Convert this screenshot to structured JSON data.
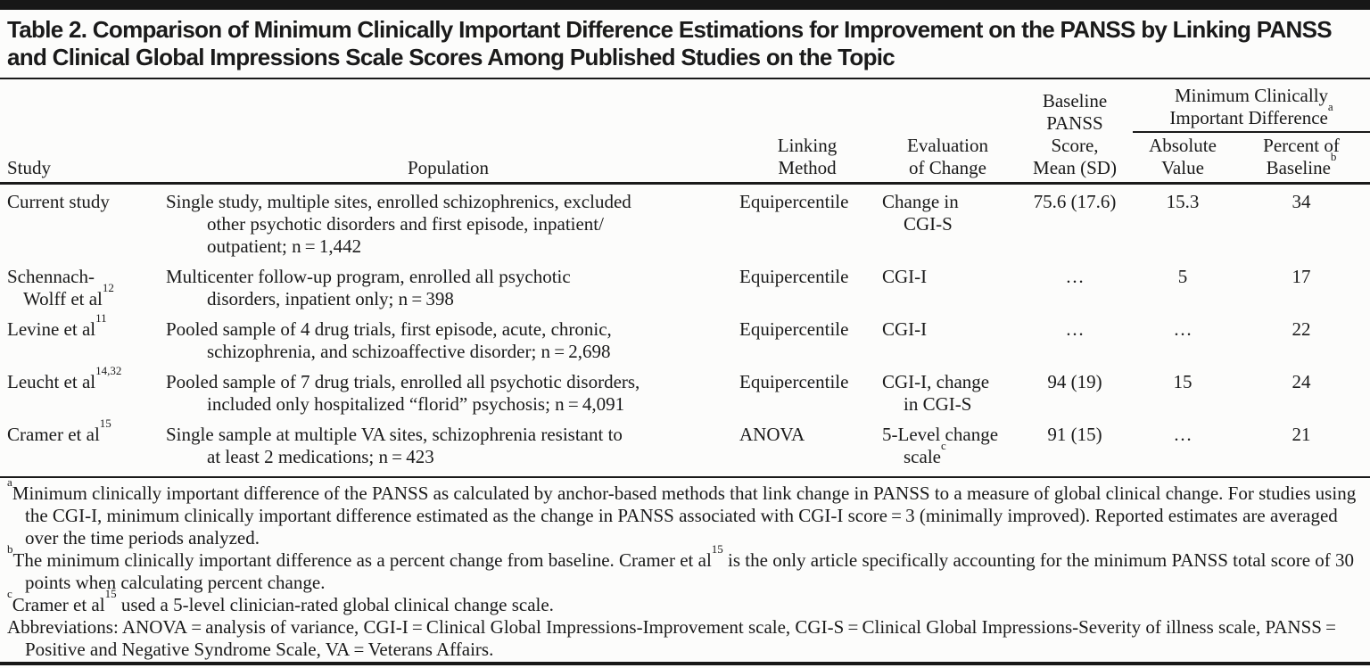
{
  "title": "Table 2. Comparison of Minimum Clinically Important Difference Estimations for Improvement on the PANSS by Linking PANSS\nand Clinical Global Impressions Scale Scores Among Published Studies on the Topic",
  "table": {
    "headers": {
      "study": "Study",
      "population": "Population",
      "linking_method": "Linking\nMethod",
      "evaluation_of_change": "Evaluation\nof Change",
      "baseline_panss": "Baseline\nPANSS\nScore,\nMean (SD)",
      "mcid_group": [
        {
          "t": "Minimum Clinically\nImportant Difference"
        },
        {
          "sup": "a"
        }
      ],
      "absolute_value": "Absolute\nValue",
      "percent_of_baseline": [
        {
          "t": "Percent of\nBaseline"
        },
        {
          "sup": "b"
        }
      ]
    },
    "rows": [
      {
        "study": [
          {
            "t": "Current study"
          }
        ],
        "population": "Single study, multiple sites, enrolled schizophrenics, excluded\nother psychotic disorders and first episode, inpatient/\noutpatient; n = 1,442",
        "linking_method": "Equipercentile",
        "evaluation_of_change": [
          {
            "t": "Change in\nCGI-S"
          }
        ],
        "baseline_panss": "75.6 (17.6)",
        "absolute_value": "15.3",
        "percent_of_baseline": "34"
      },
      {
        "study": [
          {
            "t": "Schennach-\nWolff et al"
          },
          {
            "sup": "12"
          }
        ],
        "population": "Multicenter follow-up program, enrolled all psychotic\ndisorders, inpatient only; n = 398",
        "linking_method": "Equipercentile",
        "evaluation_of_change": [
          {
            "t": "CGI-I"
          }
        ],
        "baseline_panss": "…",
        "absolute_value": "5",
        "percent_of_baseline": "17"
      },
      {
        "study": [
          {
            "t": "Levine et al"
          },
          {
            "sup": "11"
          }
        ],
        "population": "Pooled sample of 4 drug trials, first episode, acute, chronic,\nschizophrenia, and schizoaffective disorder; n = 2,698",
        "linking_method": "Equipercentile",
        "evaluation_of_change": [
          {
            "t": "CGI-I"
          }
        ],
        "baseline_panss": "…",
        "absolute_value": "…",
        "percent_of_baseline": "22"
      },
      {
        "study": [
          {
            "t": "Leucht et al"
          },
          {
            "sup": "14,32"
          }
        ],
        "population": "Pooled sample of 7 drug trials, enrolled all psychotic disorders,\nincluded only hospitalized “florid” psychosis; n = 4,091",
        "linking_method": "Equipercentile",
        "evaluation_of_change": [
          {
            "t": "CGI-I, change\nin CGI-S"
          }
        ],
        "baseline_panss": "94 (19)",
        "absolute_value": "15",
        "percent_of_baseline": "24"
      },
      {
        "study": [
          {
            "t": "Cramer et al"
          },
          {
            "sup": "15"
          }
        ],
        "population": "Single sample at multiple VA sites, schizophrenia resistant to\nat least 2 medications; n = 423",
        "linking_method": "ANOVA",
        "evaluation_of_change": [
          {
            "t": "5-Level change\nscale"
          },
          {
            "sup": "c"
          }
        ],
        "baseline_panss": "91 (15)",
        "absolute_value": "…",
        "percent_of_baseline": "21"
      }
    ]
  },
  "footnotes": [
    [
      {
        "sup": "a"
      },
      {
        "t": "Minimum clinically important difference of the PANSS as calculated by anchor-based methods that link change in PANSS to a measure of global clinical change. For studies using the CGI-I, minimum clinically important difference estimated as the change in PANSS associated with CGI-I score = 3 (minimally improved). Reported estimates are averaged over the time periods analyzed."
      }
    ],
    [
      {
        "sup": "b"
      },
      {
        "t": "The minimum clinically important difference as a percent change from baseline. Cramer et al"
      },
      {
        "sup": "15"
      },
      {
        "t": " is the only article specifically accounting for the minimum PANSS total score of 30 points when calculating percent change."
      }
    ],
    [
      {
        "sup": "c"
      },
      {
        "t": "Cramer et al"
      },
      {
        "sup": "15"
      },
      {
        "t": " used a 5-level clinician-rated global clinical change scale."
      }
    ],
    [
      {
        "t": "Abbreviations: ANOVA = analysis of variance, CGI-I = Clinical Global Impressions-Improvement scale, CGI-S = Clinical Global Impressions-Severity of illness scale, PANSS = Positive and Negative Syndrome Scale, VA = Veterans Affairs."
      }
    ]
  ],
  "colors": {
    "text": "#1a1a1a",
    "rule": "#171717",
    "background": "#fcfcfb"
  }
}
